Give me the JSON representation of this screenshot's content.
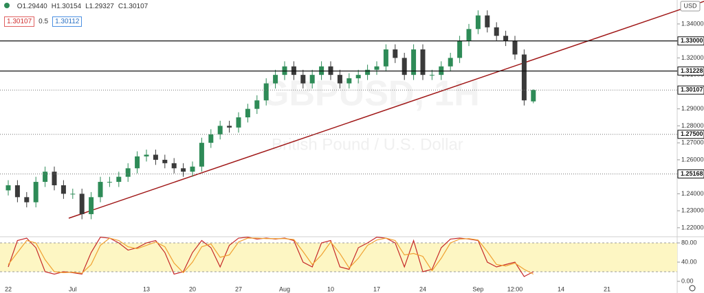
{
  "header": {
    "ohlc": [
      {
        "key": "O",
        "value": "1.29440"
      },
      {
        "key": "H",
        "value": "1.30154"
      },
      {
        "key": "L",
        "value": "1.29327"
      },
      {
        "key": "C",
        "value": "1.30107"
      }
    ],
    "badges": [
      "1.30107",
      "0.5",
      "1.30112"
    ],
    "currency": "USD"
  },
  "watermark": {
    "symbol": "GBPUSD, 1H",
    "description": "British Pound / U.S. Dollar"
  },
  "chart_data": [
    {
      "type": "candlestick",
      "categories": [
        "22",
        null,
        null,
        null,
        null,
        null,
        null,
        "Jul",
        null,
        null,
        null,
        null,
        null,
        null,
        null,
        "13",
        null,
        null,
        null,
        null,
        "20",
        null,
        null,
        null,
        null,
        "27",
        null,
        null,
        null,
        null,
        "Aug",
        null,
        null,
        null,
        null,
        "10",
        null,
        null,
        null,
        null,
        "17",
        null,
        null,
        null,
        null,
        "24",
        null,
        null,
        null,
        null,
        null,
        "Sep",
        null,
        null,
        null,
        "12:00",
        null,
        null,
        null,
        null,
        "14",
        null,
        null,
        null,
        null,
        "21",
        null
      ],
      "open": [
        1.242,
        1.245,
        1.238,
        1.235,
        1.247,
        1.253,
        1.245,
        1.24,
        1.24,
        1.228,
        1.238,
        1.247,
        1.247,
        1.25,
        1.255,
        1.262,
        1.263,
        1.26,
        1.258,
        1.255,
        1.253,
        1.256,
        1.27,
        1.275,
        1.28,
        1.279,
        1.285,
        1.29,
        1.295,
        1.305,
        1.31,
        1.315,
        1.31,
        1.305,
        1.31,
        1.315,
        1.31,
        1.305,
        1.308,
        1.31,
        1.313,
        1.315,
        1.325,
        1.32,
        1.31,
        1.325,
        1.31,
        1.31,
        1.315,
        1.32,
        1.33,
        1.337,
        1.345,
        1.338,
        1.333,
        1.33,
        1.322,
        1.2944,
        null,
        null,
        null,
        null,
        null,
        null,
        null,
        null,
        null
      ],
      "high": [
        1.248,
        1.248,
        1.241,
        1.25,
        1.256,
        1.256,
        1.248,
        1.243,
        1.243,
        1.241,
        1.25,
        1.25,
        1.253,
        1.258,
        1.265,
        1.266,
        1.266,
        1.263,
        1.261,
        1.258,
        1.259,
        1.273,
        1.278,
        1.283,
        1.283,
        1.288,
        1.293,
        1.298,
        1.308,
        1.313,
        1.318,
        1.318,
        1.313,
        1.313,
        1.318,
        1.318,
        1.313,
        1.311,
        1.313,
        1.316,
        1.318,
        1.328,
        1.328,
        1.323,
        1.328,
        1.328,
        1.313,
        1.318,
        1.323,
        1.333,
        1.34,
        1.348,
        1.348,
        1.341,
        1.336,
        1.333,
        1.325,
        1.3015,
        null,
        null,
        null,
        null,
        null,
        null,
        null,
        null,
        null
      ],
      "low": [
        1.239,
        1.235,
        1.232,
        1.232,
        1.244,
        1.242,
        1.237,
        1.237,
        1.225,
        1.225,
        1.235,
        1.244,
        1.244,
        1.247,
        1.252,
        1.259,
        1.257,
        1.255,
        1.252,
        1.25,
        1.25,
        1.253,
        1.267,
        1.272,
        1.276,
        1.276,
        1.282,
        1.287,
        1.292,
        1.302,
        1.307,
        1.307,
        1.302,
        1.302,
        1.307,
        1.307,
        1.302,
        1.302,
        1.305,
        1.307,
        1.31,
        1.312,
        1.317,
        1.307,
        1.307,
        1.307,
        1.307,
        1.307,
        1.312,
        1.317,
        1.327,
        1.334,
        1.335,
        1.33,
        1.327,
        1.319,
        1.292,
        1.2933,
        null,
        null,
        null,
        null,
        null,
        null,
        null,
        null,
        null
      ],
      "close": [
        1.245,
        1.238,
        1.235,
        1.247,
        1.253,
        1.245,
        1.24,
        1.24,
        1.228,
        1.238,
        1.247,
        1.247,
        1.25,
        1.255,
        1.262,
        1.263,
        1.26,
        1.258,
        1.255,
        1.253,
        1.256,
        1.27,
        1.275,
        1.28,
        1.279,
        1.285,
        1.29,
        1.295,
        1.305,
        1.31,
        1.315,
        1.31,
        1.305,
        1.31,
        1.315,
        1.31,
        1.305,
        1.308,
        1.31,
        1.313,
        1.315,
        1.325,
        1.32,
        1.31,
        1.325,
        1.31,
        1.31,
        1.315,
        1.32,
        1.33,
        1.337,
        1.345,
        1.338,
        1.333,
        1.33,
        1.322,
        1.295,
        1.3011,
        null,
        null,
        null,
        null,
        null,
        null,
        null,
        null,
        null
      ],
      "up_color": "#2e8b57",
      "down_color": "#3a3a3a",
      "ylim": [
        1.2147,
        1.3541
      ],
      "yticks": [
        {
          "value": 1.22,
          "label": "1.22000"
        },
        {
          "value": 1.23,
          "label": "1.23000"
        },
        {
          "value": 1.24,
          "label": "1.24000"
        },
        {
          "value": 1.25,
          "label": "1.25000"
        },
        {
          "value": 1.26,
          "label": "1.26000"
        },
        {
          "value": 1.27,
          "label": "1.27000"
        },
        {
          "value": 1.28,
          "label": "1.28000"
        },
        {
          "value": 1.29,
          "label": "1.29000"
        },
        {
          "value": 1.3,
          "label": "1.30000"
        },
        {
          "value": 1.31,
          "label": "1.31000"
        },
        {
          "value": 1.32,
          "label": "1.32000"
        },
        {
          "value": 1.33,
          "label": "1.33000"
        },
        {
          "value": 1.34,
          "label": "1.34000"
        }
      ],
      "levels": [
        {
          "value": 1.33,
          "label": "1.33000",
          "style": "solid"
        },
        {
          "value": 1.31228,
          "label": "1.31228",
          "style": "solid"
        },
        {
          "value": 1.30107,
          "label": "1.30107",
          "style": "dotted"
        },
        {
          "value": 1.275,
          "label": "1.27500",
          "style": "dotted"
        },
        {
          "value": 1.25168,
          "label": "1.25168",
          "style": "dotted"
        }
      ]
    },
    {
      "type": "line",
      "series": [
        {
          "color": "#c62828",
          "values": [
            30,
            85,
            90,
            70,
            20,
            15,
            20,
            18,
            15,
            60,
            92,
            90,
            80,
            65,
            70,
            80,
            85,
            60,
            15,
            20,
            60,
            85,
            70,
            30,
            75,
            90,
            92,
            88,
            90,
            88,
            90,
            85,
            40,
            30,
            80,
            85,
            30,
            25,
            70,
            80,
            92,
            90,
            80,
            30,
            85,
            20,
            25,
            70,
            88,
            90,
            88,
            85,
            40,
            30,
            35,
            40,
            10,
            20,
            null,
            null,
            null,
            null,
            null,
            null,
            null,
            null,
            null
          ]
        },
        {
          "color": "#f0a030",
          "values": [
            35,
            60,
            85,
            80,
            45,
            20,
            18,
            19,
            17,
            35,
            75,
            90,
            85,
            72,
            68,
            75,
            82,
            72,
            38,
            18,
            40,
            72,
            78,
            50,
            55,
            82,
            90,
            90,
            89,
            89,
            89,
            87,
            62,
            35,
            55,
            82,
            58,
            28,
            48,
            75,
            86,
            90,
            85,
            55,
            58,
            52,
            22,
            48,
            80,
            88,
            89,
            86,
            62,
            35,
            32,
            38,
            25,
            15,
            null,
            null,
            null,
            null,
            null,
            null,
            null,
            null,
            null
          ]
        }
      ],
      "band": [
        20,
        80
      ],
      "band_color": "#fdf6c3",
      "ylim": [
        -14.3,
        92.9
      ],
      "yticks": [
        {
          "value": 0,
          "label": "0.00"
        },
        {
          "value": 40,
          "label": "40.00"
        },
        {
          "value": 80,
          "label": "80.00"
        }
      ]
    }
  ]
}
